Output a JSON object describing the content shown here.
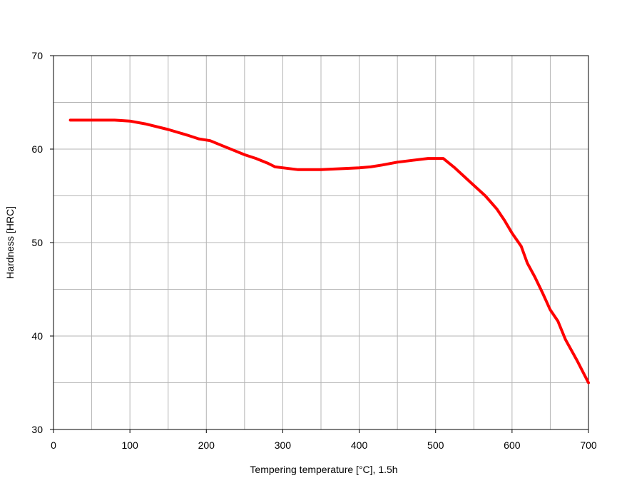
{
  "chart_data": {
    "type": "line",
    "title": "",
    "xlabel": "Tempering temperature [°C], 1.5h",
    "ylabel": "Hardness [HRC]",
    "xlim": [
      0,
      700
    ],
    "ylim": [
      30,
      70
    ],
    "x_ticks": [
      0,
      100,
      200,
      300,
      400,
      500,
      600,
      700
    ],
    "x_tick_labels": [
      "0",
      "100",
      "200",
      "300",
      "400",
      "500",
      "600",
      "700"
    ],
    "y_ticks": [
      30,
      40,
      50,
      60,
      70
    ],
    "y_tick_labels": [
      "30",
      "40",
      "50",
      "60",
      "70"
    ],
    "x_minor_grid_step": 50,
    "y_minor_grid_step": 5,
    "grid": true,
    "colors": {
      "line": "#ff0000",
      "grid": "#b4b4b4",
      "frame": "#000000"
    },
    "series": [
      {
        "x": [
          22,
          50,
          80,
          100,
          120,
          150,
          175,
          190,
          205,
          220,
          235,
          250,
          265,
          280,
          290,
          300,
          320,
          350,
          375,
          400,
          415,
          430,
          450,
          470,
          490,
          510,
          525,
          545,
          565,
          580,
          590,
          600,
          612,
          620,
          630,
          640,
          650,
          660,
          670,
          685,
          700
        ],
        "y": [
          63.1,
          63.1,
          63.1,
          63.0,
          62.7,
          62.1,
          61.5,
          61.1,
          60.9,
          60.4,
          59.9,
          59.4,
          59.0,
          58.5,
          58.1,
          58.0,
          57.8,
          57.8,
          57.9,
          58.0,
          58.1,
          58.3,
          58.6,
          58.8,
          59.0,
          59.0,
          58.0,
          56.5,
          55.0,
          53.6,
          52.4,
          51.0,
          49.6,
          47.8,
          46.3,
          44.6,
          42.8,
          41.6,
          39.6,
          37.4,
          35.0
        ]
      }
    ]
  }
}
